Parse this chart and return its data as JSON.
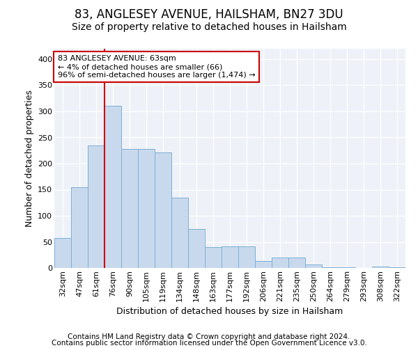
{
  "title": "83, ANGLESEY AVENUE, HAILSHAM, BN27 3DU",
  "subtitle": "Size of property relative to detached houses in Hailsham",
  "xlabel": "Distribution of detached houses by size in Hailsham",
  "ylabel": "Number of detached properties",
  "categories": [
    "32sqm",
    "47sqm",
    "61sqm",
    "76sqm",
    "90sqm",
    "105sqm",
    "119sqm",
    "134sqm",
    "148sqm",
    "163sqm",
    "177sqm",
    "192sqm",
    "206sqm",
    "221sqm",
    "235sqm",
    "250sqm",
    "264sqm",
    "279sqm",
    "293sqm",
    "308sqm",
    "322sqm"
  ],
  "values": [
    57,
    155,
    235,
    310,
    228,
    228,
    221,
    135,
    75,
    40,
    42,
    42,
    14,
    20,
    20,
    7,
    2,
    1,
    0,
    3,
    1
  ],
  "bar_color": "#c9d9ed",
  "bar_edge_color": "#7bafd4",
  "vline_color": "#cc0000",
  "vline_x_index": 2,
  "annotation_text": "83 ANGLESEY AVENUE: 63sqm\n← 4% of detached houses are smaller (66)\n96% of semi-detached houses are larger (1,474) →",
  "annotation_box_facecolor": "#ffffff",
  "annotation_box_edgecolor": "#cc0000",
  "ylim": [
    0,
    420
  ],
  "yticks": [
    0,
    50,
    100,
    150,
    200,
    250,
    300,
    350,
    400
  ],
  "background_color": "#eef2f8",
  "footer_line1": "Contains HM Land Registry data © Crown copyright and database right 2024.",
  "footer_line2": "Contains public sector information licensed under the Open Government Licence v3.0.",
  "title_fontsize": 12,
  "subtitle_fontsize": 10,
  "axis_label_fontsize": 9,
  "tick_fontsize": 8,
  "annotation_fontsize": 8,
  "footer_fontsize": 7.5
}
